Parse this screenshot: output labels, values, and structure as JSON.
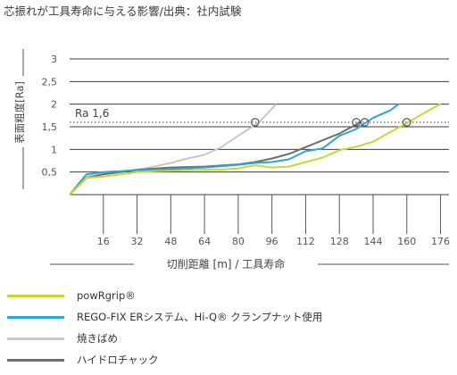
{
  "title": "芯振れが工具寿命に与える影響/出典：社内試験",
  "chart_data": {
    "type": "line",
    "xlabel": "切削距離 [m] / 工具寿命",
    "ylabel": "表面粗度[Ra]",
    "xlim": [
      0,
      180
    ],
    "ylim": [
      0,
      3
    ],
    "x_ticks": [
      "16",
      "32",
      "48",
      "64",
      "80",
      "96",
      "112",
      "128",
      "144",
      "160",
      "176"
    ],
    "y_ticks": [
      "0,5",
      "1",
      "1,5",
      "2",
      "2,5",
      "3"
    ],
    "reference_line": {
      "label": "Ra 1,6",
      "value": 1.6,
      "style": "dotted"
    },
    "grid": true,
    "legend_position": "bottom",
    "series": [
      {
        "name": "powRgrip®",
        "color": "#c8d82e",
        "points": [
          [
            0,
            0
          ],
          [
            8,
            0.37
          ],
          [
            16,
            0.4
          ],
          [
            24,
            0.45
          ],
          [
            32,
            0.5
          ],
          [
            40,
            0.52
          ],
          [
            56,
            0.54
          ],
          [
            64,
            0.55
          ],
          [
            72,
            0.55
          ],
          [
            80,
            0.58
          ],
          [
            88,
            0.65
          ],
          [
            96,
            0.6
          ],
          [
            104,
            0.62
          ],
          [
            112,
            0.72
          ],
          [
            120,
            0.82
          ],
          [
            128,
            0.98
          ],
          [
            136,
            1.06
          ],
          [
            144,
            1.17
          ],
          [
            152,
            1.38
          ],
          [
            160,
            1.58
          ],
          [
            168,
            1.8
          ],
          [
            176,
            2.01
          ]
        ],
        "marker": [
          160,
          1.6
        ]
      },
      {
        "name": "REGO-FIX ERシステム、Hi-Q® クランプナット使用",
        "color": "#29a8d8",
        "points": [
          [
            0,
            0
          ],
          [
            8,
            0.45
          ],
          [
            16,
            0.5
          ],
          [
            24,
            0.52
          ],
          [
            32,
            0.54
          ],
          [
            48,
            0.56
          ],
          [
            64,
            0.6
          ],
          [
            72,
            0.63
          ],
          [
            80,
            0.66
          ],
          [
            88,
            0.7
          ],
          [
            96,
            0.72
          ],
          [
            104,
            0.78
          ],
          [
            112,
            0.96
          ],
          [
            120,
            1.02
          ],
          [
            128,
            1.3
          ],
          [
            136,
            1.45
          ],
          [
            144,
            1.7
          ],
          [
            152,
            1.86
          ],
          [
            156,
            2.0
          ]
        ],
        "marker": [
          140,
          1.6
        ]
      },
      {
        "name": "焼きばめ",
        "color": "#c8c8c8",
        "points": [
          [
            0,
            0
          ],
          [
            8,
            0.4
          ],
          [
            16,
            0.48
          ],
          [
            24,
            0.52
          ],
          [
            32,
            0.55
          ],
          [
            40,
            0.62
          ],
          [
            48,
            0.7
          ],
          [
            56,
            0.8
          ],
          [
            64,
            0.88
          ],
          [
            72,
            1.05
          ],
          [
            80,
            1.3
          ],
          [
            86,
            1.48
          ],
          [
            90,
            1.6
          ],
          [
            94,
            1.8
          ],
          [
            98,
            2.0
          ]
        ],
        "marker": [
          88,
          1.6
        ]
      },
      {
        "name": "ハイドロチャック",
        "color": "#6e6e6e",
        "points": [
          [
            0,
            0
          ],
          [
            8,
            0.37
          ],
          [
            16,
            0.45
          ],
          [
            24,
            0.5
          ],
          [
            32,
            0.55
          ],
          [
            48,
            0.6
          ],
          [
            64,
            0.62
          ],
          [
            80,
            0.67
          ],
          [
            88,
            0.72
          ],
          [
            96,
            0.8
          ],
          [
            104,
            0.9
          ],
          [
            112,
            1.05
          ],
          [
            120,
            1.2
          ],
          [
            128,
            1.35
          ],
          [
            136,
            1.55
          ],
          [
            138,
            1.62
          ]
        ],
        "marker": [
          136,
          1.6
        ]
      }
    ]
  }
}
